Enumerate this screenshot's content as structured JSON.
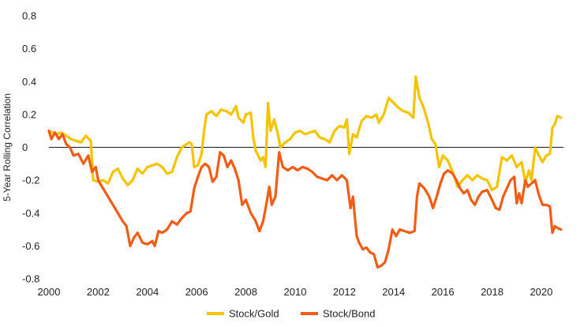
{
  "chart_data": {
    "type": "line",
    "title": "",
    "xlabel": "",
    "ylabel": "5-Year Rolling Correlation",
    "xlim": [
      2000,
      2020.9
    ],
    "ylim": [
      -0.8,
      0.8
    ],
    "x_ticks": [
      "2000",
      "2002",
      "2004",
      "2006",
      "2008",
      "2010",
      "2012",
      "2014",
      "2016",
      "2018",
      "2020"
    ],
    "y_ticks": [
      "0.8",
      "0.6",
      "0.4",
      "0.2",
      "0",
      "-0.2",
      "-0.4",
      "-0.6",
      "-0.8"
    ],
    "zero_line": true,
    "grid": false,
    "legend_position": "bottom-center",
    "series": [
      {
        "name": "Stock/Gold",
        "color": "#f5c400",
        "points": [
          [
            2000.0,
            0.1
          ],
          [
            2000.3,
            0.08
          ],
          [
            2000.5,
            0.09
          ],
          [
            2000.7,
            0.07
          ],
          [
            2000.9,
            0.05
          ],
          [
            2001.1,
            0.04
          ],
          [
            2001.3,
            0.03
          ],
          [
            2001.5,
            0.07
          ],
          [
            2001.7,
            0.04
          ],
          [
            2001.8,
            -0.2
          ],
          [
            2002.0,
            -0.21
          ],
          [
            2002.2,
            -0.2
          ],
          [
            2002.4,
            -0.22
          ],
          [
            2002.6,
            -0.15
          ],
          [
            2002.8,
            -0.13
          ],
          [
            2003.0,
            -0.19
          ],
          [
            2003.2,
            -0.23
          ],
          [
            2003.4,
            -0.2
          ],
          [
            2003.6,
            -0.13
          ],
          [
            2003.8,
            -0.16
          ],
          [
            2004.0,
            -0.12
          ],
          [
            2004.2,
            -0.11
          ],
          [
            2004.4,
            -0.1
          ],
          [
            2004.6,
            -0.12
          ],
          [
            2004.8,
            -0.16
          ],
          [
            2005.0,
            -0.15
          ],
          [
            2005.2,
            -0.06
          ],
          [
            2005.4,
            0.0
          ],
          [
            2005.6,
            0.02
          ],
          [
            2005.7,
            0.03
          ],
          [
            2005.8,
            0.02
          ],
          [
            2005.9,
            -0.12
          ],
          [
            2006.05,
            -0.11
          ],
          [
            2006.2,
            -0.04
          ],
          [
            2006.3,
            0.1
          ],
          [
            2006.4,
            0.2
          ],
          [
            2006.6,
            0.22
          ],
          [
            2006.8,
            0.19
          ],
          [
            2007.0,
            0.23
          ],
          [
            2007.2,
            0.22
          ],
          [
            2007.4,
            0.2
          ],
          [
            2007.6,
            0.25
          ],
          [
            2007.7,
            0.18
          ],
          [
            2007.9,
            0.15
          ],
          [
            2008.0,
            0.2
          ],
          [
            2008.2,
            0.21
          ],
          [
            2008.3,
            0.06
          ],
          [
            2008.4,
            -0.02
          ],
          [
            2008.6,
            -0.08
          ],
          [
            2008.7,
            -0.06
          ],
          [
            2008.8,
            -0.12
          ],
          [
            2008.9,
            0.27
          ],
          [
            2009.0,
            0.1
          ],
          [
            2009.15,
            0.17
          ],
          [
            2009.3,
            0.08
          ],
          [
            2009.4,
            0.0
          ],
          [
            2009.6,
            0.03
          ],
          [
            2009.8,
            0.05
          ],
          [
            2010.0,
            0.09
          ],
          [
            2010.2,
            0.1
          ],
          [
            2010.4,
            0.08
          ],
          [
            2010.6,
            0.09
          ],
          [
            2010.8,
            0.1
          ],
          [
            2011.0,
            0.06
          ],
          [
            2011.2,
            0.05
          ],
          [
            2011.4,
            0.03
          ],
          [
            2011.6,
            0.1
          ],
          [
            2011.8,
            0.13
          ],
          [
            2012.0,
            0.12
          ],
          [
            2012.1,
            0.17
          ],
          [
            2012.2,
            -0.04
          ],
          [
            2012.35,
            0.08
          ],
          [
            2012.5,
            0.06
          ],
          [
            2012.7,
            0.16
          ],
          [
            2012.9,
            0.19
          ],
          [
            2013.1,
            0.18
          ],
          [
            2013.3,
            0.2
          ],
          [
            2013.4,
            0.15
          ],
          [
            2013.6,
            0.2
          ],
          [
            2013.8,
            0.3
          ],
          [
            2014.0,
            0.27
          ],
          [
            2014.2,
            0.24
          ],
          [
            2014.4,
            0.22
          ],
          [
            2014.6,
            0.21
          ],
          [
            2014.8,
            0.18
          ],
          [
            2014.9,
            0.43
          ],
          [
            2015.05,
            0.3
          ],
          [
            2015.2,
            0.25
          ],
          [
            2015.4,
            0.15
          ],
          [
            2015.55,
            0.05
          ],
          [
            2015.7,
            0.02
          ],
          [
            2015.85,
            -0.12
          ],
          [
            2016.0,
            -0.05
          ],
          [
            2016.2,
            -0.08
          ],
          [
            2016.4,
            -0.15
          ],
          [
            2016.6,
            -0.24
          ],
          [
            2016.8,
            -0.2
          ],
          [
            2017.0,
            -0.17
          ],
          [
            2017.2,
            -0.2
          ],
          [
            2017.4,
            -0.17
          ],
          [
            2017.6,
            -0.19
          ],
          [
            2017.8,
            -0.2
          ],
          [
            2018.0,
            -0.26
          ],
          [
            2018.2,
            -0.24
          ],
          [
            2018.4,
            -0.06
          ],
          [
            2018.6,
            -0.08
          ],
          [
            2018.8,
            -0.05
          ],
          [
            2019.0,
            -0.12
          ],
          [
            2019.2,
            -0.09
          ],
          [
            2019.35,
            -0.21
          ],
          [
            2019.5,
            -0.14
          ],
          [
            2019.6,
            -0.2
          ],
          [
            2019.75,
            0.0
          ],
          [
            2019.9,
            -0.05
          ],
          [
            2020.05,
            -0.09
          ],
          [
            2020.2,
            -0.05
          ],
          [
            2020.35,
            -0.04
          ],
          [
            2020.45,
            0.12
          ],
          [
            2020.55,
            0.14
          ],
          [
            2020.65,
            0.19
          ],
          [
            2020.8,
            0.18
          ]
        ]
      },
      {
        "name": "Stock/Bond",
        "color": "#f25c14",
        "points": [
          [
            2000.0,
            0.1
          ],
          [
            2000.1,
            0.05
          ],
          [
            2000.25,
            0.09
          ],
          [
            2000.4,
            0.05
          ],
          [
            2000.55,
            0.08
          ],
          [
            2000.7,
            0.02
          ],
          [
            2000.85,
            0.0
          ],
          [
            2001.0,
            -0.05
          ],
          [
            2001.2,
            -0.04
          ],
          [
            2001.4,
            -0.1
          ],
          [
            2001.6,
            -0.05
          ],
          [
            2001.75,
            -0.15
          ],
          [
            2001.9,
            -0.12
          ],
          [
            2002.0,
            -0.2
          ],
          [
            2002.2,
            -0.25
          ],
          [
            2002.4,
            -0.3
          ],
          [
            2002.6,
            -0.35
          ],
          [
            2002.8,
            -0.4
          ],
          [
            2003.0,
            -0.45
          ],
          [
            2003.15,
            -0.48
          ],
          [
            2003.3,
            -0.6
          ],
          [
            2003.45,
            -0.55
          ],
          [
            2003.6,
            -0.52
          ],
          [
            2003.8,
            -0.58
          ],
          [
            2004.0,
            -0.59
          ],
          [
            2004.2,
            -0.57
          ],
          [
            2004.3,
            -0.6
          ],
          [
            2004.45,
            -0.51
          ],
          [
            2004.6,
            -0.52
          ],
          [
            2004.8,
            -0.5
          ],
          [
            2005.0,
            -0.45
          ],
          [
            2005.2,
            -0.47
          ],
          [
            2005.4,
            -0.43
          ],
          [
            2005.6,
            -0.4
          ],
          [
            2005.75,
            -0.39
          ],
          [
            2005.9,
            -0.25
          ],
          [
            2006.05,
            -0.18
          ],
          [
            2006.2,
            -0.12
          ],
          [
            2006.35,
            -0.1
          ],
          [
            2006.5,
            -0.12
          ],
          [
            2006.65,
            -0.21
          ],
          [
            2006.8,
            -0.18
          ],
          [
            2006.95,
            -0.03
          ],
          [
            2007.1,
            -0.05
          ],
          [
            2007.25,
            -0.12
          ],
          [
            2007.4,
            -0.08
          ],
          [
            2007.55,
            -0.13
          ],
          [
            2007.7,
            -0.2
          ],
          [
            2007.85,
            -0.35
          ],
          [
            2008.0,
            -0.32
          ],
          [
            2008.2,
            -0.4
          ],
          [
            2008.4,
            -0.45
          ],
          [
            2008.55,
            -0.51
          ],
          [
            2008.7,
            -0.45
          ],
          [
            2008.85,
            -0.33
          ],
          [
            2008.95,
            -0.24
          ],
          [
            2009.05,
            -0.35
          ],
          [
            2009.2,
            -0.3
          ],
          [
            2009.35,
            -0.03
          ],
          [
            2009.5,
            -0.12
          ],
          [
            2009.7,
            -0.14
          ],
          [
            2009.9,
            -0.12
          ],
          [
            2010.1,
            -0.14
          ],
          [
            2010.3,
            -0.12
          ],
          [
            2010.5,
            -0.13
          ],
          [
            2010.7,
            -0.15
          ],
          [
            2010.9,
            -0.18
          ],
          [
            2011.1,
            -0.19
          ],
          [
            2011.3,
            -0.2
          ],
          [
            2011.5,
            -0.17
          ],
          [
            2011.7,
            -0.2
          ],
          [
            2011.9,
            -0.17
          ],
          [
            2012.1,
            -0.2
          ],
          [
            2012.25,
            -0.37
          ],
          [
            2012.35,
            -0.3
          ],
          [
            2012.5,
            -0.54
          ],
          [
            2012.6,
            -0.58
          ],
          [
            2012.75,
            -0.62
          ],
          [
            2012.9,
            -0.61
          ],
          [
            2013.05,
            -0.64
          ],
          [
            2013.2,
            -0.65
          ],
          [
            2013.35,
            -0.73
          ],
          [
            2013.5,
            -0.72
          ],
          [
            2013.65,
            -0.7
          ],
          [
            2013.8,
            -0.62
          ],
          [
            2013.95,
            -0.5
          ],
          [
            2014.1,
            -0.54
          ],
          [
            2014.25,
            -0.5
          ],
          [
            2014.45,
            -0.51
          ],
          [
            2014.65,
            -0.52
          ],
          [
            2014.85,
            -0.51
          ],
          [
            2014.95,
            -0.3
          ],
          [
            2015.05,
            -0.22
          ],
          [
            2015.25,
            -0.25
          ],
          [
            2015.45,
            -0.3
          ],
          [
            2015.6,
            -0.37
          ],
          [
            2015.75,
            -0.3
          ],
          [
            2015.9,
            -0.22
          ],
          [
            2016.05,
            -0.16
          ],
          [
            2016.2,
            -0.14
          ],
          [
            2016.4,
            -0.16
          ],
          [
            2016.55,
            -0.2
          ],
          [
            2016.7,
            -0.25
          ],
          [
            2016.85,
            -0.28
          ],
          [
            2017.0,
            -0.26
          ],
          [
            2017.15,
            -0.32
          ],
          [
            2017.3,
            -0.35
          ],
          [
            2017.45,
            -0.3
          ],
          [
            2017.6,
            -0.27
          ],
          [
            2017.8,
            -0.26
          ],
          [
            2018.0,
            -0.32
          ],
          [
            2018.15,
            -0.37
          ],
          [
            2018.3,
            -0.38
          ],
          [
            2018.45,
            -0.3
          ],
          [
            2018.6,
            -0.25
          ],
          [
            2018.75,
            -0.2
          ],
          [
            2018.9,
            -0.18
          ],
          [
            2019.0,
            -0.34
          ],
          [
            2019.1,
            -0.28
          ],
          [
            2019.2,
            -0.34
          ],
          [
            2019.35,
            -0.2
          ],
          [
            2019.45,
            -0.24
          ],
          [
            2019.6,
            -0.22
          ],
          [
            2019.75,
            -0.2
          ],
          [
            2019.9,
            -0.29
          ],
          [
            2020.05,
            -0.35
          ],
          [
            2020.2,
            -0.35
          ],
          [
            2020.35,
            -0.36
          ],
          [
            2020.45,
            -0.52
          ],
          [
            2020.55,
            -0.48
          ],
          [
            2020.65,
            -0.49
          ],
          [
            2020.8,
            -0.5
          ]
        ]
      }
    ]
  }
}
